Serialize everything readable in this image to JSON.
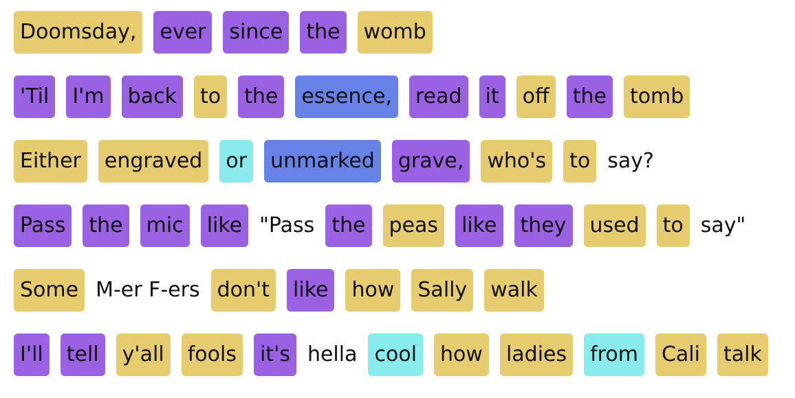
{
  "colors": {
    "yellow": "#e6cc6e",
    "purple": "#9b61e3",
    "blue": "#6782e6",
    "cyan": "#88ecec",
    "plain": "none"
  },
  "lines": [
    [
      {
        "text": "Doomsday,",
        "color": "yellow"
      },
      {
        "text": "ever",
        "color": "purple"
      },
      {
        "text": "since",
        "color": "purple"
      },
      {
        "text": "the",
        "color": "purple"
      },
      {
        "text": "womb",
        "color": "yellow"
      }
    ],
    [
      {
        "text": "'Til",
        "color": "purple"
      },
      {
        "text": "I'm",
        "color": "purple"
      },
      {
        "text": "back",
        "color": "purple"
      },
      {
        "text": "to",
        "color": "yellow"
      },
      {
        "text": "the",
        "color": "purple"
      },
      {
        "text": "essence,",
        "color": "blue"
      },
      {
        "text": "read",
        "color": "purple"
      },
      {
        "text": "it",
        "color": "purple"
      },
      {
        "text": "off",
        "color": "yellow"
      },
      {
        "text": "the",
        "color": "purple"
      },
      {
        "text": "tomb",
        "color": "yellow"
      }
    ],
    [
      {
        "text": "Either",
        "color": "yellow"
      },
      {
        "text": "engraved",
        "color": "yellow"
      },
      {
        "text": "or",
        "color": "cyan"
      },
      {
        "text": "unmarked",
        "color": "blue"
      },
      {
        "text": "grave,",
        "color": "purple"
      },
      {
        "text": "who's",
        "color": "yellow"
      },
      {
        "text": "to",
        "color": "yellow"
      },
      {
        "text": "say?",
        "color": "plain"
      }
    ],
    [
      {
        "text": "Pass",
        "color": "purple"
      },
      {
        "text": "the",
        "color": "purple"
      },
      {
        "text": "mic",
        "color": "purple"
      },
      {
        "text": "like",
        "color": "purple"
      },
      {
        "text": "\"Pass",
        "color": "plain"
      },
      {
        "text": "the",
        "color": "purple"
      },
      {
        "text": "peas",
        "color": "yellow"
      },
      {
        "text": "like",
        "color": "purple"
      },
      {
        "text": "they",
        "color": "purple"
      },
      {
        "text": "used",
        "color": "yellow"
      },
      {
        "text": "to",
        "color": "yellow"
      },
      {
        "text": "say\"",
        "color": "plain"
      }
    ],
    [
      {
        "text": "Some",
        "color": "yellow"
      },
      {
        "text": "M-er F-ers",
        "color": "plain"
      },
      {
        "text": "don't",
        "color": "yellow"
      },
      {
        "text": "like",
        "color": "purple"
      },
      {
        "text": "how",
        "color": "yellow"
      },
      {
        "text": "Sally",
        "color": "yellow"
      },
      {
        "text": "walk",
        "color": "yellow"
      }
    ],
    [
      {
        "text": "I'll",
        "color": "purple"
      },
      {
        "text": "tell",
        "color": "purple"
      },
      {
        "text": "y'all",
        "color": "yellow"
      },
      {
        "text": "fools",
        "color": "yellow"
      },
      {
        "text": "it's",
        "color": "purple"
      },
      {
        "text": "hella",
        "color": "plain"
      },
      {
        "text": "cool",
        "color": "cyan"
      },
      {
        "text": "how",
        "color": "yellow"
      },
      {
        "text": "ladies",
        "color": "yellow"
      },
      {
        "text": "from",
        "color": "cyan"
      },
      {
        "text": "Cali",
        "color": "yellow"
      },
      {
        "text": "talk",
        "color": "yellow"
      }
    ]
  ]
}
